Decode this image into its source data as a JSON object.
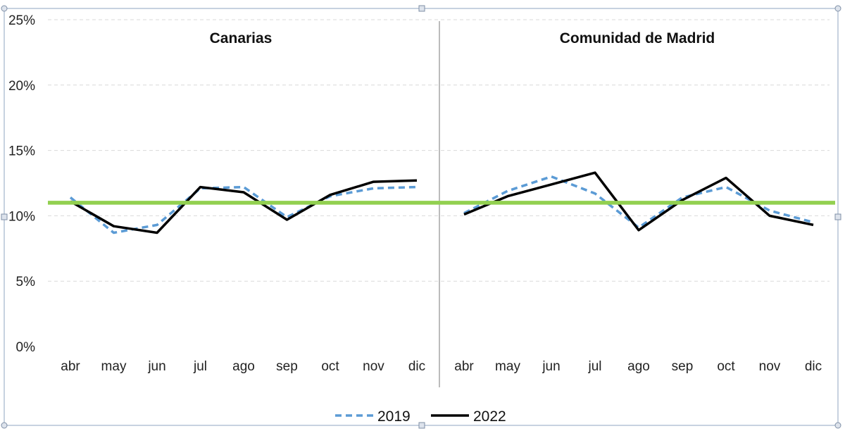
{
  "chart_data": {
    "type": "line",
    "y_axis": {
      "ylim": [
        0,
        25
      ],
      "ticks": [
        0,
        5,
        10,
        15,
        20,
        25
      ],
      "tick_labels": [
        "0%",
        "5%",
        "10%",
        "15%",
        "20%",
        "25%"
      ],
      "grid": true,
      "grid_style": "dashed"
    },
    "reference_line": {
      "value": 11,
      "color": "#92D050"
    },
    "series_styles": [
      {
        "key": "s2019",
        "color": "#5B9BD5",
        "dash": "dashed"
      },
      {
        "key": "s2022",
        "color": "#000000",
        "dash": "solid"
      }
    ],
    "legend": {
      "position": "bottom",
      "items": [
        {
          "label": "2019",
          "color": "#5B9BD5",
          "dash": "dashed"
        },
        {
          "label": "2022",
          "color": "#000000",
          "dash": "solid"
        }
      ]
    },
    "panels": [
      {
        "title": "Canarias",
        "categories": [
          "abr",
          "may",
          "jun",
          "jul",
          "ago",
          "sep",
          "oct",
          "nov",
          "dic"
        ],
        "series": [
          {
            "name": "2019",
            "values": [
              11.4,
              8.7,
              9.3,
              12.1,
              12.2,
              9.9,
              11.5,
              12.1,
              12.2
            ]
          },
          {
            "name": "2022",
            "values": [
              11.1,
              9.2,
              8.7,
              12.2,
              11.8,
              9.7,
              11.6,
              12.6,
              12.7
            ]
          }
        ]
      },
      {
        "title": "Comunidad de Madrid",
        "categories": [
          "abr",
          "may",
          "jun",
          "jul",
          "ago",
          "sep",
          "oct",
          "nov",
          "dic"
        ],
        "series": [
          {
            "name": "2019",
            "values": [
              10.2,
              11.9,
              13.0,
              11.7,
              9.1,
              11.4,
              12.2,
              10.4,
              9.5
            ]
          },
          {
            "name": "2022",
            "values": [
              10.1,
              11.5,
              12.4,
              13.3,
              8.9,
              11.2,
              12.9,
              10.0,
              9.3
            ]
          }
        ]
      }
    ]
  }
}
